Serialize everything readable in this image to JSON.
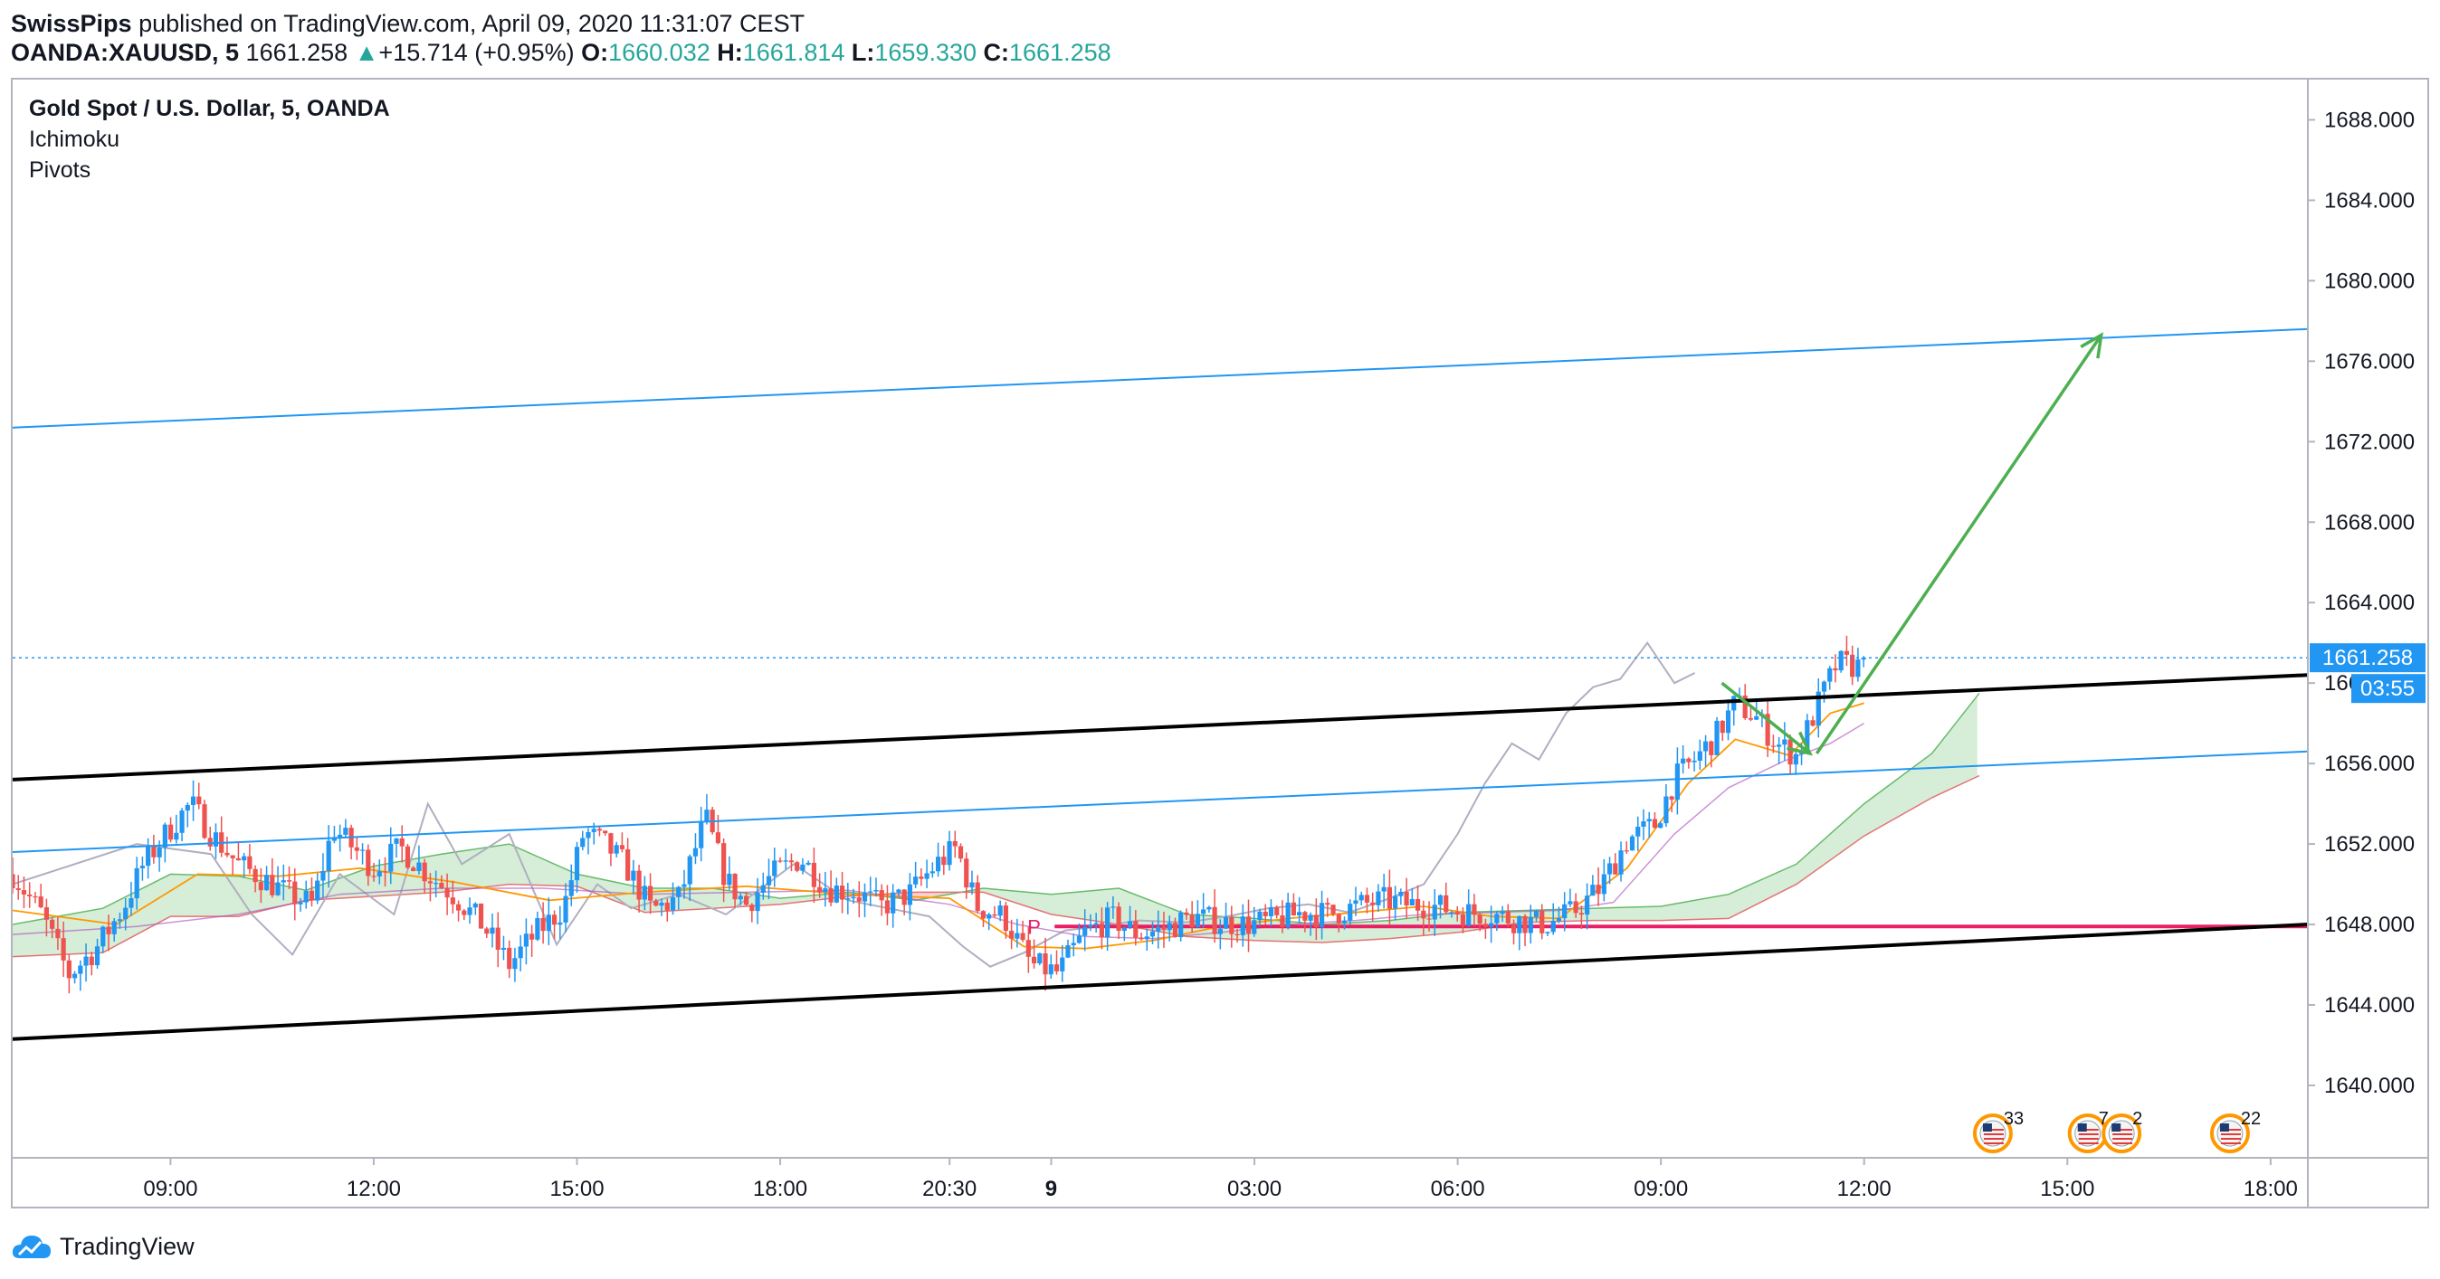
{
  "header": {
    "author": "SwissPips",
    "published_text": "published on TradingView.com, April 09, 2020 11:31:07 CEST",
    "symbol": "OANDA:XAUUSD, 5",
    "last": "1661.258",
    "change_arrow": "▲",
    "change": "+15.714 (+0.95%)",
    "o_label": "O:",
    "o": "1660.032",
    "h_label": "H:",
    "h": "1661.814",
    "l_label": "L:",
    "l": "1659.330",
    "c_label": "C:",
    "c": "1661.258"
  },
  "legend": {
    "title": "Gold Spot / U.S. Dollar, 5, OANDA",
    "ind1": "Ichimoku",
    "ind2": "Pivots"
  },
  "footer": {
    "brand": "TradingView",
    "logo_icon": "tradingview-cloud-icon"
  },
  "colors": {
    "up": "#2196f3",
    "down": "#ef5350",
    "channel": "#000000",
    "blue_line": "#2196f3",
    "arrow": "#4caf50",
    "pivot": "#e91e63",
    "cloud_green": "#a5d6a7",
    "cloud_red": "#ef9a9a",
    "lagging": "#b0aec0",
    "conversion": "#ff9800",
    "price_tag": "#2196f3"
  },
  "chart_data": {
    "type": "candlestick",
    "y_ticks": [
      "1688.000",
      "1684.000",
      "1680.000",
      "1676.000",
      "1672.000",
      "1668.000",
      "1664.000",
      "1660.000",
      "1656.000",
      "1652.000",
      "1648.000",
      "1644.000",
      "1640.000"
    ],
    "ylim": [
      1636.4,
      1690.0
    ],
    "x_ticks": [
      {
        "label": "09:00",
        "t": 2
      },
      {
        "label": "12:00",
        "t": 5
      },
      {
        "label": "15:00",
        "t": 8
      },
      {
        "label": "18:00",
        "t": 11
      },
      {
        "label": "20:30",
        "t": 13.5
      },
      {
        "label": "9",
        "t": 15
      },
      {
        "label": "03:00",
        "t": 18
      },
      {
        "label": "06:00",
        "t": 21
      },
      {
        "label": "09:00",
        "t": 24
      },
      {
        "label": "12:00",
        "t": 27
      },
      {
        "label": "15:00",
        "t": 30
      },
      {
        "label": "18:00",
        "t": 33
      }
    ],
    "xlim": [
      -0.33,
      33.55
    ],
    "last_price": "1661.258",
    "countdown": "03:55",
    "last_price_value": 1661.258,
    "pivot_label": "P",
    "pivot_level": 1647.9,
    "pivot_range_t": [
      15.05,
      33.55
    ],
    "channel_lower": [
      [
        -0.33,
        1642.3
      ],
      [
        33.55,
        1648.0
      ]
    ],
    "channel_upper": [
      [
        -0.33,
        1655.2
      ],
      [
        33.55,
        1660.4
      ]
    ],
    "blue_upper": [
      [
        -0.33,
        1672.7
      ],
      [
        33.55,
        1677.6
      ]
    ],
    "blue_lower": [
      [
        -0.33,
        1651.6
      ],
      [
        33.55,
        1656.6
      ]
    ],
    "arrow_small": [
      [
        24.9,
        1660.0
      ],
      [
        26.2,
        1656.5
      ]
    ],
    "arrow_big": [
      [
        26.3,
        1656.5
      ],
      [
        30.5,
        1677.3
      ]
    ],
    "events": [
      {
        "t": 28.9,
        "count": "33"
      },
      {
        "t": 30.3,
        "count": "7"
      },
      {
        "t": 30.8,
        "count": "2"
      },
      {
        "t": 32.4,
        "count": "22"
      }
    ],
    "price_path": [
      [
        -0.33,
        1650.5
      ],
      [
        0.1,
        1648.5
      ],
      [
        0.5,
        1645.5
      ],
      [
        0.9,
        1646.8
      ],
      [
        1.3,
        1648.8
      ],
      [
        1.6,
        1651.0
      ],
      [
        2.0,
        1652.8
      ],
      [
        2.3,
        1654.0
      ],
      [
        2.6,
        1652.5
      ],
      [
        3.0,
        1651.0
      ],
      [
        3.4,
        1650.2
      ],
      [
        3.8,
        1649.4
      ],
      [
        4.1,
        1649.0
      ],
      [
        4.4,
        1652.8
      ],
      [
        4.7,
        1651.8
      ],
      [
        5.0,
        1650.8
      ],
      [
        5.4,
        1651.8
      ],
      [
        5.8,
        1650.5
      ],
      [
        6.2,
        1649.4
      ],
      [
        6.6,
        1648.0
      ],
      [
        7.0,
        1646.0
      ],
      [
        7.4,
        1647.6
      ],
      [
        7.8,
        1648.8
      ],
      [
        8.1,
        1652.6
      ],
      [
        8.4,
        1652.0
      ],
      [
        8.7,
        1651.0
      ],
      [
        9.1,
        1648.7
      ],
      [
        9.5,
        1649.3
      ],
      [
        9.9,
        1653.3
      ],
      [
        10.2,
        1650.2
      ],
      [
        10.5,
        1649.0
      ],
      [
        10.9,
        1650.5
      ],
      [
        11.3,
        1651.3
      ],
      [
        11.7,
        1649.8
      ],
      [
        12.1,
        1649.6
      ],
      [
        12.5,
        1648.9
      ],
      [
        12.9,
        1649.5
      ],
      [
        13.3,
        1651.0
      ],
      [
        13.6,
        1651.8
      ],
      [
        13.9,
        1648.9
      ],
      [
        14.3,
        1648.4
      ],
      [
        14.7,
        1646.0
      ],
      [
        15.1,
        1645.6
      ],
      [
        15.5,
        1647.6
      ],
      [
        15.9,
        1648.3
      ],
      [
        16.3,
        1647.5
      ],
      [
        16.7,
        1647.8
      ],
      [
        17.1,
        1648.4
      ],
      [
        17.5,
        1648.1
      ],
      [
        17.9,
        1648.0
      ],
      [
        18.3,
        1648.2
      ],
      [
        18.7,
        1648.6
      ],
      [
        19.1,
        1648.5
      ],
      [
        19.5,
        1648.9
      ],
      [
        19.9,
        1649.2
      ],
      [
        20.3,
        1649.0
      ],
      [
        20.7,
        1648.9
      ],
      [
        21.1,
        1648.6
      ],
      [
        21.5,
        1648.5
      ],
      [
        21.9,
        1648.2
      ],
      [
        22.3,
        1648.0
      ],
      [
        22.7,
        1648.6
      ],
      [
        23.1,
        1649.8
      ],
      [
        23.5,
        1652.2
      ],
      [
        23.9,
        1652.9
      ],
      [
        24.2,
        1655.2
      ],
      [
        24.5,
        1656.2
      ],
      [
        24.8,
        1657.3
      ],
      [
        25.1,
        1659.0
      ],
      [
        25.4,
        1658.3
      ],
      [
        25.7,
        1657.0
      ],
      [
        26.0,
        1656.4
      ],
      [
        26.3,
        1658.8
      ],
      [
        26.6,
        1661.0
      ],
      [
        26.9,
        1660.8
      ],
      [
        27.05,
        1661.26
      ]
    ],
    "lagging_path": [
      [
        -0.33,
        1650.0
      ],
      [
        1.5,
        1652.0
      ],
      [
        2.6,
        1651.5
      ],
      [
        3.2,
        1648.5
      ],
      [
        3.8,
        1646.5
      ],
      [
        4.5,
        1650.5
      ],
      [
        5.3,
        1648.5
      ],
      [
        5.8,
        1654.0
      ],
      [
        6.3,
        1651.0
      ],
      [
        7.0,
        1652.5
      ],
      [
        7.7,
        1647.0
      ],
      [
        8.3,
        1650.0
      ],
      [
        8.8,
        1648.8
      ],
      [
        9.5,
        1649.5
      ],
      [
        10.2,
        1648.5
      ],
      [
        11.2,
        1651.0
      ],
      [
        12.0,
        1649.2
      ],
      [
        12.6,
        1648.8
      ],
      [
        13.2,
        1648.4
      ],
      [
        13.7,
        1646.9
      ],
      [
        14.1,
        1645.9
      ],
      [
        14.6,
        1646.6
      ],
      [
        15.2,
        1647.7
      ],
      [
        15.7,
        1647.9
      ],
      [
        16.3,
        1648.2
      ],
      [
        17.0,
        1648.1
      ],
      [
        17.6,
        1648.4
      ],
      [
        18.2,
        1648.8
      ],
      [
        18.8,
        1649.0
      ],
      [
        19.4,
        1648.6
      ],
      [
        20.0,
        1649.3
      ],
      [
        20.5,
        1650.0
      ],
      [
        21.0,
        1652.5
      ],
      [
        21.4,
        1655.0
      ],
      [
        21.8,
        1657.0
      ],
      [
        22.2,
        1656.2
      ],
      [
        22.6,
        1658.5
      ],
      [
        23.0,
        1659.8
      ],
      [
        23.4,
        1660.2
      ],
      [
        23.8,
        1662.0
      ],
      [
        24.2,
        1660.0
      ],
      [
        24.5,
        1660.5
      ]
    ],
    "conversion_path": [
      [
        -0.33,
        1648.7
      ],
      [
        1.2,
        1648.0
      ],
      [
        2.4,
        1650.5
      ],
      [
        3.6,
        1650.4
      ],
      [
        4.8,
        1650.8
      ],
      [
        6.2,
        1650.1
      ],
      [
        7.6,
        1649.2
      ],
      [
        9.0,
        1649.6
      ],
      [
        10.5,
        1649.9
      ],
      [
        12.0,
        1649.5
      ],
      [
        13.5,
        1649.3
      ],
      [
        14.6,
        1646.9
      ],
      [
        15.5,
        1646.8
      ],
      [
        16.5,
        1647.2
      ],
      [
        17.5,
        1647.9
      ],
      [
        18.5,
        1648.3
      ],
      [
        19.5,
        1648.6
      ],
      [
        20.5,
        1648.9
      ],
      [
        21.5,
        1648.4
      ],
      [
        22.5,
        1648.3
      ],
      [
        23.5,
        1650.8
      ],
      [
        24.4,
        1655.0
      ],
      [
        25.1,
        1657.2
      ],
      [
        25.9,
        1656.4
      ],
      [
        26.5,
        1658.5
      ],
      [
        27.0,
        1659.0
      ]
    ],
    "base_path": [
      [
        -0.33,
        1647.5
      ],
      [
        1.5,
        1647.9
      ],
      [
        3.0,
        1648.5
      ],
      [
        4.5,
        1649.5
      ],
      [
        6.0,
        1649.8
      ],
      [
        7.5,
        1649.8
      ],
      [
        9.0,
        1649.5
      ],
      [
        10.5,
        1649.6
      ],
      [
        12.0,
        1649.7
      ],
      [
        13.5,
        1649.0
      ],
      [
        14.5,
        1648.0
      ],
      [
        15.5,
        1647.4
      ],
      [
        16.5,
        1647.3
      ],
      [
        17.5,
        1647.6
      ],
      [
        18.5,
        1648.0
      ],
      [
        19.5,
        1648.2
      ],
      [
        20.5,
        1648.5
      ],
      [
        21.5,
        1648.6
      ],
      [
        22.5,
        1648.7
      ],
      [
        23.3,
        1649.1
      ],
      [
        24.2,
        1652.5
      ],
      [
        25.0,
        1654.8
      ],
      [
        25.8,
        1656.1
      ],
      [
        26.5,
        1657.0
      ],
      [
        27.0,
        1658.0
      ]
    ],
    "cloud_a": [
      [
        -0.33,
        1648.0
      ],
      [
        1.0,
        1648.8
      ],
      [
        2.0,
        1650.5
      ],
      [
        3.0,
        1650.4
      ],
      [
        4.0,
        1649.7
      ],
      [
        5.0,
        1650.9
      ],
      [
        6.0,
        1651.5
      ],
      [
        7.0,
        1652.0
      ],
      [
        8.0,
        1650.5
      ],
      [
        9.0,
        1649.8
      ],
      [
        10.0,
        1649.8
      ],
      [
        11.0,
        1649.3
      ],
      [
        12.0,
        1649.6
      ],
      [
        13.0,
        1649.2
      ],
      [
        14.0,
        1649.8
      ],
      [
        15.0,
        1649.5
      ],
      [
        16.0,
        1649.8
      ],
      [
        17.0,
        1648.5
      ],
      [
        18.0,
        1648.3
      ],
      [
        19.0,
        1648.0
      ],
      [
        20.0,
        1648.2
      ],
      [
        21.0,
        1648.6
      ],
      [
        22.0,
        1648.7
      ],
      [
        23.0,
        1648.8
      ],
      [
        24.0,
        1648.9
      ],
      [
        25.0,
        1649.5
      ],
      [
        26.0,
        1651.0
      ],
      [
        27.0,
        1654.0
      ],
      [
        28.0,
        1656.5
      ],
      [
        28.7,
        1659.5
      ]
    ],
    "cloud_b": [
      [
        -0.33,
        1646.4
      ],
      [
        1.0,
        1646.6
      ],
      [
        2.0,
        1648.4
      ],
      [
        3.0,
        1648.4
      ],
      [
        4.0,
        1649.2
      ],
      [
        5.0,
        1649.4
      ],
      [
        6.0,
        1649.6
      ],
      [
        7.0,
        1650.0
      ],
      [
        8.0,
        1649.9
      ],
      [
        9.0,
        1648.6
      ],
      [
        10.0,
        1648.8
      ],
      [
        11.0,
        1649.0
      ],
      [
        12.0,
        1649.4
      ],
      [
        13.0,
        1649.6
      ],
      [
        14.0,
        1649.6
      ],
      [
        15.0,
        1648.5
      ],
      [
        16.0,
        1648.0
      ],
      [
        17.0,
        1647.4
      ],
      [
        18.0,
        1647.2
      ],
      [
        19.0,
        1647.1
      ],
      [
        20.0,
        1647.3
      ],
      [
        21.0,
        1647.6
      ],
      [
        22.0,
        1648.1
      ],
      [
        23.0,
        1648.2
      ],
      [
        24.0,
        1648.2
      ],
      [
        25.0,
        1648.3
      ],
      [
        26.0,
        1650.0
      ],
      [
        27.0,
        1652.4
      ],
      [
        28.0,
        1654.3
      ],
      [
        28.7,
        1655.4
      ]
    ]
  }
}
